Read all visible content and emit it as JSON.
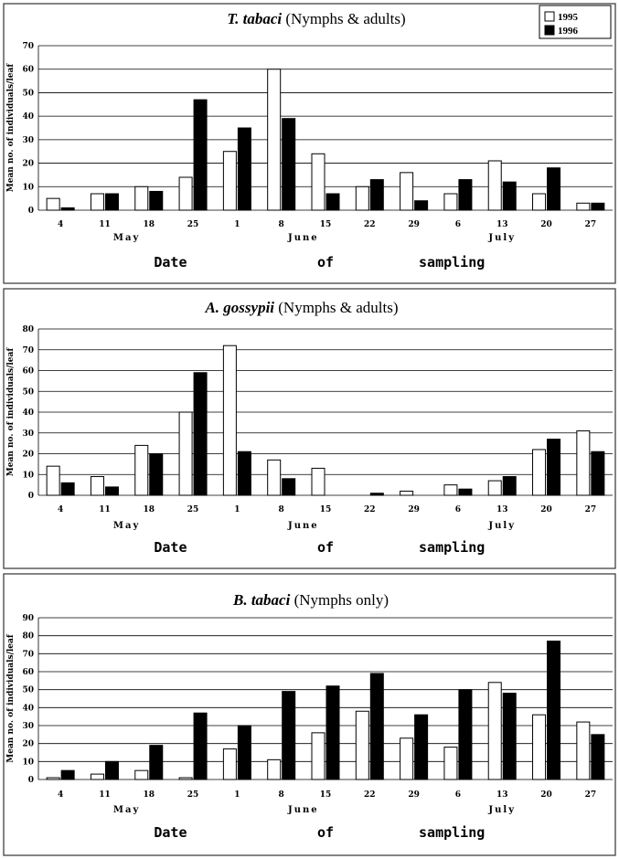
{
  "chart_data": [
    {
      "type": "bar",
      "title_species": "T. tabaci",
      "title_rest": "(Nymphs & adults)",
      "ylabel": "Mean no. of individuals/leaf",
      "xlabel_words": [
        "Date",
        "of",
        "sampling"
      ],
      "categories": [
        "4",
        "11",
        "18",
        "25",
        "1",
        "8",
        "15",
        "22",
        "29",
        "6",
        "13",
        "20",
        "27"
      ],
      "months": [
        "May",
        "June",
        "July"
      ],
      "ylim": [
        0,
        70
      ],
      "yticks": [
        0,
        10,
        20,
        30,
        40,
        50,
        60,
        70
      ],
      "series": [
        {
          "name": "1995",
          "values": [
            5,
            7,
            10,
            14,
            25,
            60,
            24,
            10,
            16,
            7,
            21,
            7,
            3
          ]
        },
        {
          "name": "1996",
          "values": [
            1,
            7,
            8,
            47,
            35,
            39,
            7,
            13,
            4,
            13,
            12,
            18,
            3
          ]
        }
      ],
      "legend": {
        "placement": "top-right",
        "entries": [
          "1995",
          "1996"
        ]
      }
    },
    {
      "type": "bar",
      "title_species": "A. gossypii",
      "title_rest": "(Nymphs & adults)",
      "ylabel": "Mean no. of individuals/leaf",
      "xlabel_words": [
        "Date",
        "of",
        "sampling"
      ],
      "categories": [
        "4",
        "11",
        "18",
        "25",
        "1",
        "8",
        "15",
        "22",
        "29",
        "6",
        "13",
        "20",
        "27"
      ],
      "months": [
        "May",
        "June",
        "July"
      ],
      "ylim": [
        0,
        80
      ],
      "yticks": [
        0,
        10,
        20,
        30,
        40,
        50,
        60,
        70,
        80
      ],
      "series": [
        {
          "name": "1995",
          "values": [
            14,
            9,
            24,
            40,
            72,
            17,
            13,
            0,
            2,
            5,
            7,
            22,
            31
          ]
        },
        {
          "name": "1996",
          "values": [
            6,
            4,
            20,
            59,
            21,
            8,
            0,
            1,
            0,
            3,
            9,
            27,
            21
          ]
        }
      ]
    },
    {
      "type": "bar",
      "title_species": "B. tabaci",
      "title_rest": "(Nymphs only)",
      "ylabel": "Mean no. of individuals/leaf",
      "xlabel_words": [
        "Date",
        "of",
        "sampling"
      ],
      "categories": [
        "4",
        "11",
        "18",
        "25",
        "1",
        "8",
        "15",
        "22",
        "29",
        "6",
        "13",
        "20",
        "27"
      ],
      "months": [
        "May",
        "June",
        "July"
      ],
      "ylim": [
        0,
        90
      ],
      "yticks": [
        0,
        10,
        20,
        30,
        40,
        50,
        60,
        70,
        80,
        90
      ],
      "series": [
        {
          "name": "1995",
          "values": [
            1,
            3,
            5,
            1,
            17,
            11,
            26,
            38,
            23,
            18,
            54,
            36,
            32
          ]
        },
        {
          "name": "1996",
          "values": [
            5,
            10,
            19,
            37,
            30,
            49,
            52,
            59,
            36,
            50,
            48,
            77,
            25
          ]
        }
      ]
    }
  ]
}
